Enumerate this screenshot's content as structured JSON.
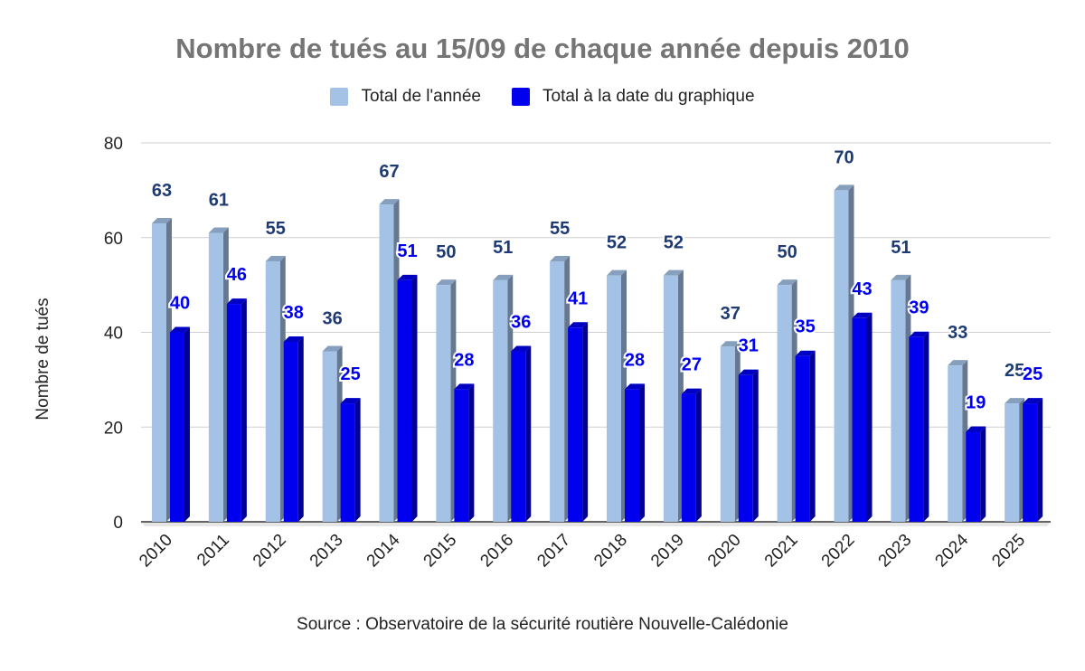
{
  "chart_data": {
    "type": "bar",
    "title": "Nombre de tués au 15/09 de chaque année depuis 2010",
    "ylabel": "Nombre de tués",
    "xlabel": "",
    "source": "Source : Observatoire de la sécurité routière Nouvelle-Calédonie",
    "categories": [
      "2010",
      "2011",
      "2012",
      "2013",
      "2014",
      "2015",
      "2016",
      "2017",
      "2018",
      "2019",
      "2020",
      "2021",
      "2022",
      "2023",
      "2024",
      "2025"
    ],
    "series": [
      {
        "name": "Total de l'année",
        "color": "#a4c2e6",
        "label_color": "#1f3b73",
        "values": [
          63,
          61,
          55,
          36,
          67,
          50,
          51,
          55,
          52,
          52,
          37,
          50,
          70,
          51,
          33,
          25
        ]
      },
      {
        "name": "Total à la date du graphique",
        "color": "#0000ee",
        "label_color": "#0000ee",
        "values": [
          40,
          46,
          38,
          25,
          51,
          28,
          36,
          41,
          28,
          27,
          31,
          35,
          43,
          39,
          19,
          25
        ]
      }
    ],
    "ylim": [
      0,
      80
    ],
    "yticks": [
      0,
      20,
      40,
      60,
      80
    ],
    "grid": true,
    "legend_position": "top-center",
    "style": "3d-columns"
  }
}
